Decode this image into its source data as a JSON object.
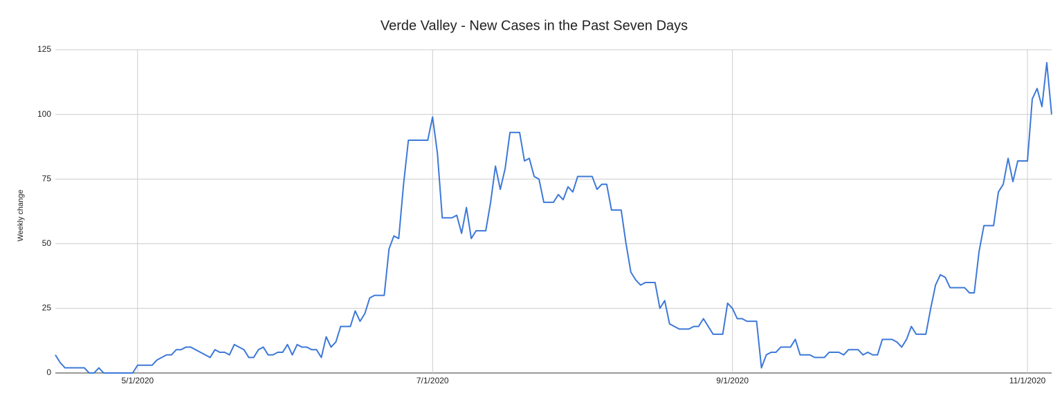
{
  "chart_data": {
    "type": "line",
    "title": "Verde Valley - New Cases in the Past Seven Days",
    "y_label": "Weekly change",
    "x": [
      "4/14/2020",
      "4/15/2020",
      "4/16/2020",
      "4/20/2020",
      "4/21/2020",
      "4/22/2020",
      "4/23/2020",
      "4/24/2020",
      "4/30/2020",
      "5/1/2020",
      "5/4/2020",
      "5/5/2020",
      "5/7/2020",
      "5/8/2020",
      "5/9/2020",
      "5/10/2020",
      "5/11/2020",
      "5/12/2020",
      "5/16/2020",
      "5/17/2020",
      "5/18/2020",
      "5/19/2020",
      "5/20/2020",
      "5/21/2020",
      "5/23/2020",
      "5/24/2020",
      "5/25/2020",
      "5/26/2020",
      "5/27/2020",
      "5/28/2020",
      "5/29/2020",
      "5/30/2020",
      "5/31/2020",
      "6/1/2020",
      "6/2/2020",
      "6/3/2020",
      "6/4/2020",
      "6/5/2020",
      "6/6/2020",
      "6/7/2020",
      "6/8/2020",
      "6/9/2020",
      "6/10/2020",
      "6/11/2020",
      "6/12/2020",
      "6/14/2020",
      "6/15/2020",
      "6/16/2020",
      "6/17/2020",
      "6/18/2020",
      "6/19/2020",
      "6/21/2020",
      "6/22/2020",
      "6/23/2020",
      "6/24/2020",
      "6/25/2020",
      "6/26/2020",
      "6/30/2020",
      "7/1/2020",
      "7/2/2020",
      "7/3/2020",
      "7/5/2020",
      "7/6/2020",
      "7/7/2020",
      "7/8/2020",
      "7/9/2020",
      "7/10/2020",
      "7/12/2020",
      "7/13/2020",
      "7/14/2020",
      "7/15/2020",
      "7/16/2020",
      "7/17/2020",
      "7/19/2020",
      "7/20/2020",
      "7/21/2020",
      "7/22/2020",
      "7/23/2020",
      "7/24/2020",
      "7/26/2020",
      "7/27/2020",
      "7/28/2020",
      "7/29/2020",
      "7/30/2020",
      "7/31/2020",
      "8/3/2020",
      "8/4/2020",
      "8/5/2020",
      "8/6/2020",
      "8/7/2020",
      "8/9/2020",
      "8/10/2020",
      "8/11/2020",
      "8/12/2020",
      "8/13/2020",
      "8/14/2020",
      "8/16/2020",
      "8/17/2020",
      "8/18/2020",
      "8/19/2020",
      "8/21/2020",
      "8/23/2020",
      "8/24/2020",
      "8/25/2020",
      "8/26/2020",
      "8/28/2020",
      "8/30/2020",
      "8/31/2020",
      "9/1/2020",
      "9/2/2020",
      "9/3/2020",
      "9/4/2020",
      "9/6/2020",
      "9/7/2020",
      "9/8/2020",
      "9/9/2020",
      "9/10/2020",
      "9/11/2020",
      "9/13/2020",
      "9/14/2020",
      "9/15/2020",
      "9/17/2020",
      "9/18/2020",
      "9/20/2020",
      "9/21/2020",
      "9/23/2020",
      "9/24/2020",
      "9/25/2020",
      "9/27/2020",
      "9/28/2020",
      "9/29/2020",
      "9/30/2020",
      "10/1/2020",
      "10/2/2020",
      "10/4/2020",
      "10/5/2020",
      "10/6/2020",
      "10/7/2020",
      "10/8/2020",
      "10/9/2020",
      "10/11/2020",
      "10/12/2020",
      "10/13/2020",
      "10/14/2020",
      "10/15/2020",
      "10/16/2020",
      "10/19/2020",
      "10/20/2020",
      "10/21/2020",
      "10/22/2020",
      "10/23/2020",
      "10/25/2020",
      "10/26/2020",
      "10/27/2020",
      "10/28/2020",
      "10/29/2020",
      "10/30/2020",
      "11/1/2020",
      "11/2/2020",
      "11/3/2020",
      "11/4/2020",
      "11/5/2020",
      "11/6/2020"
    ],
    "series": [
      {
        "name": "Weekly change",
        "color": "#3c78d8",
        "values": [
          7,
          4,
          2,
          2,
          0,
          0,
          2,
          0,
          0,
          3,
          3,
          5,
          7,
          7,
          9,
          9,
          10,
          10,
          6,
          9,
          8,
          8,
          7,
          11,
          9,
          6,
          6,
          9,
          10,
          7,
          7,
          8,
          8,
          11,
          7,
          11,
          10,
          10,
          9,
          9,
          6,
          14,
          10,
          12,
          18,
          18,
          24,
          20,
          23,
          29,
          30,
          30,
          48,
          53,
          52,
          73,
          90,
          90,
          99,
          85,
          60,
          60,
          61,
          54,
          64,
          52,
          55,
          55,
          66,
          80,
          71,
          79,
          93,
          93,
          82,
          83,
          76,
          75,
          66,
          66,
          69,
          67,
          72,
          70,
          76,
          76,
          71,
          73,
          73,
          63,
          63,
          50,
          39,
          36,
          34,
          35,
          35,
          25,
          28,
          19,
          17,
          17,
          18,
          18,
          21,
          15,
          15,
          27,
          25,
          21,
          21,
          20,
          20,
          2,
          7,
          8,
          8,
          10,
          10,
          13,
          7,
          7,
          6,
          6,
          8,
          8,
          7,
          9,
          9,
          7,
          8,
          7,
          7,
          13,
          13,
          12,
          10,
          13,
          18,
          15,
          15,
          25,
          34,
          38,
          37,
          33,
          33,
          31,
          31,
          47,
          57,
          57,
          70,
          73,
          83,
          74,
          82,
          82,
          106,
          110,
          103,
          120,
          100
        ]
      }
    ],
    "xlim": [
      "4/14/2020",
      "11/6/2020"
    ],
    "xticks": [
      "5/1/2020",
      "7/1/2020",
      "9/1/2020",
      "11/1/2020"
    ],
    "ylim": [
      0,
      125
    ],
    "yticks": [
      0,
      25,
      50,
      75,
      100,
      125
    ],
    "grid": true
  }
}
